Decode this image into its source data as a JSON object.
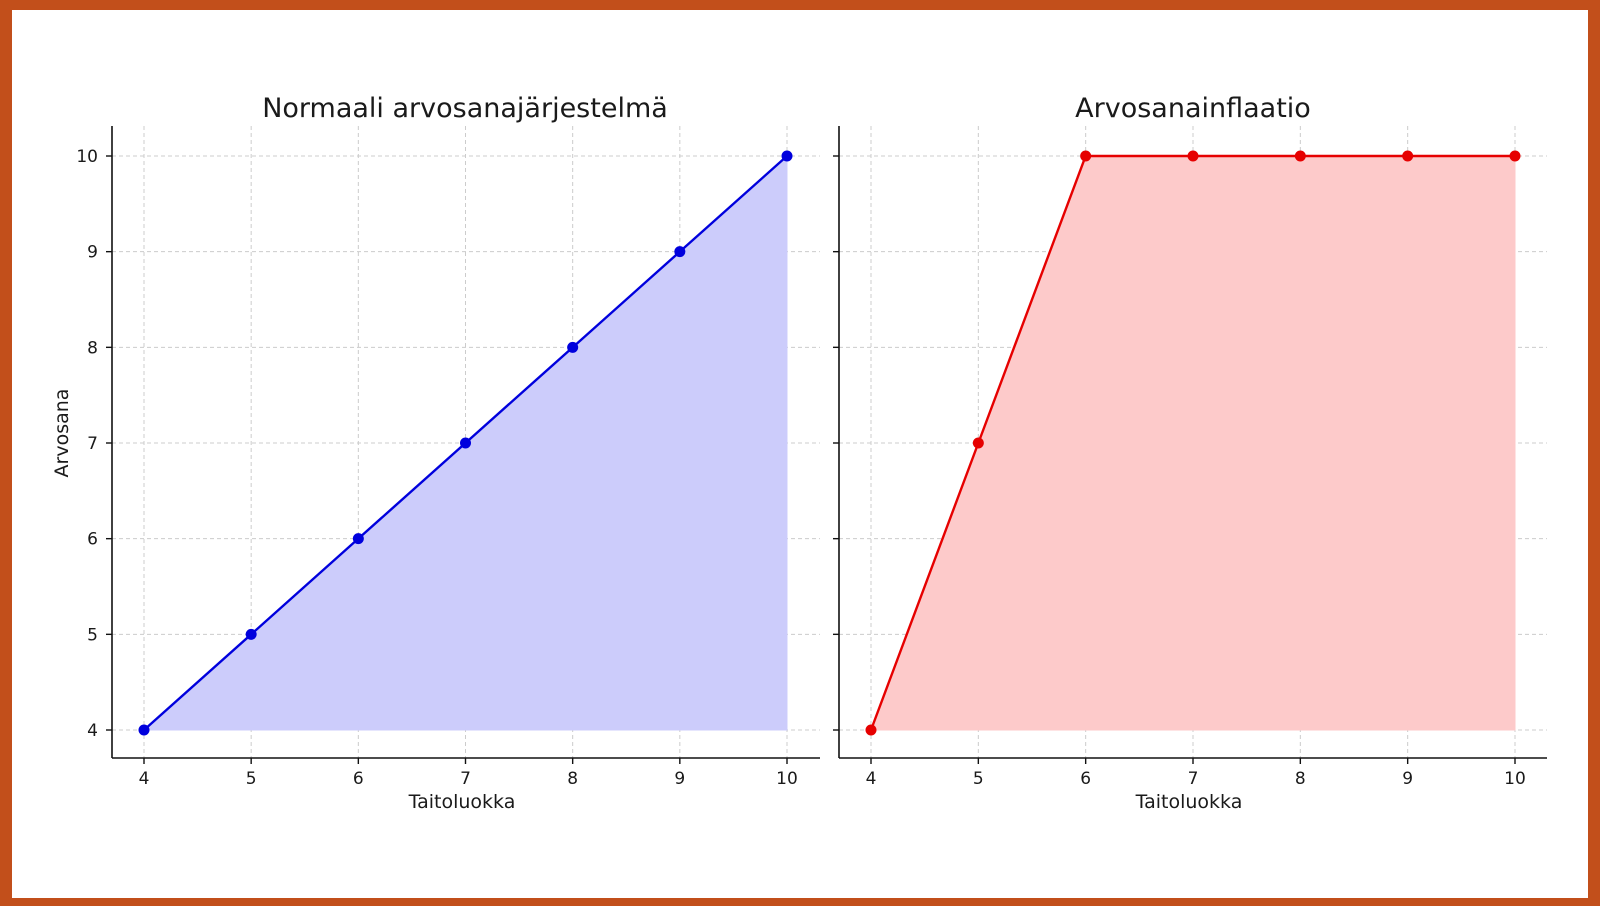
{
  "chart_data": [
    {
      "type": "area",
      "title": "Normaali arvosanajärjestelmä",
      "xlabel": "Taitoluokka",
      "ylabel": "Arvosana",
      "x": [
        4,
        5,
        6,
        7,
        8,
        9,
        10
      ],
      "series": [
        {
          "values": [
            4,
            5,
            6,
            7,
            8,
            9,
            10
          ],
          "color": "#0000dd",
          "fill_color": "#ccccfb"
        }
      ],
      "x_ticks": [
        "4",
        "5",
        "6",
        "7",
        "8",
        "9",
        "10"
      ],
      "y_ticks": [
        "4",
        "5",
        "6",
        "7",
        "8",
        "9",
        "10"
      ],
      "xlim": [
        4,
        10
      ],
      "ylim": [
        4,
        10
      ],
      "grid": true
    },
    {
      "type": "area",
      "title": "Arvosanainflaatio",
      "xlabel": "Taitoluokka",
      "ylabel": "",
      "x": [
        4,
        5,
        6,
        7,
        8,
        9,
        10
      ],
      "series": [
        {
          "values": [
            4,
            7,
            10,
            10,
            10,
            10,
            10
          ],
          "color": "#e60000",
          "fill_color": "#fdcaca"
        }
      ],
      "x_ticks": [
        "4",
        "5",
        "6",
        "7",
        "8",
        "9",
        "10"
      ],
      "y_ticks": [],
      "xlim": [
        4,
        10
      ],
      "ylim": [
        4,
        10
      ],
      "grid": true
    }
  ],
  "colors": {
    "border": "#c24f1b"
  }
}
